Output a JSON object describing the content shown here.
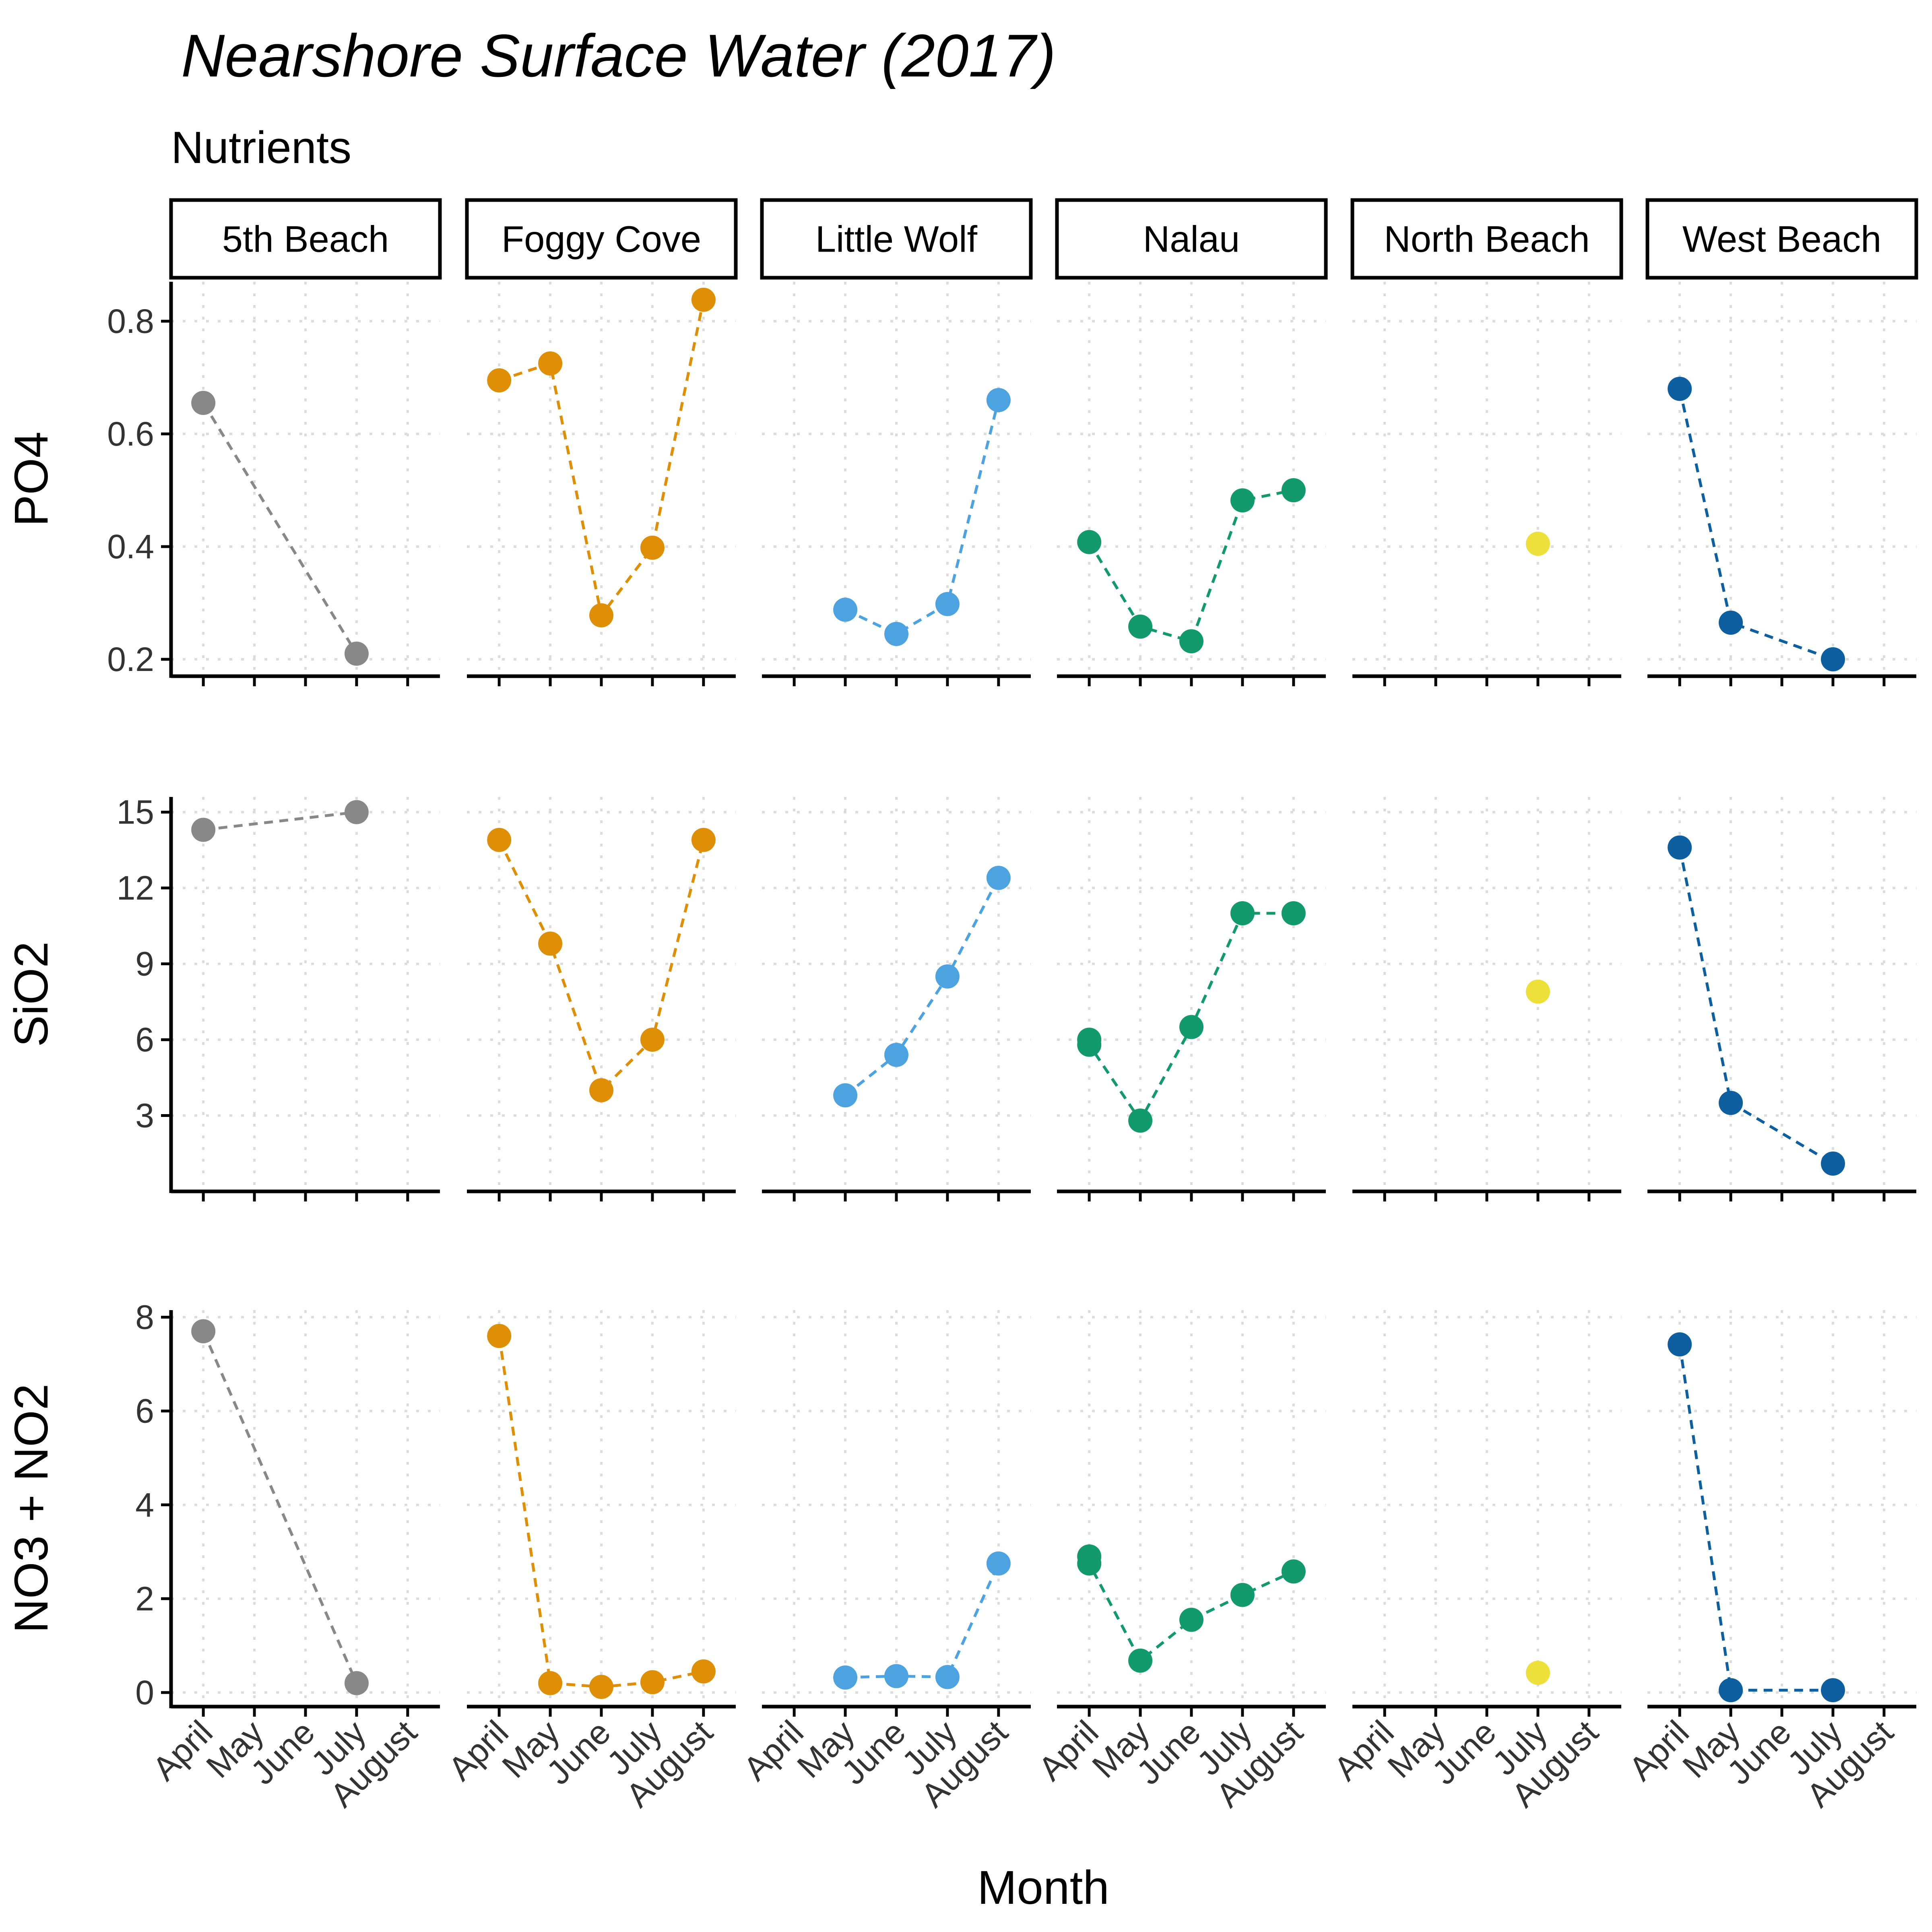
{
  "chart_data": {
    "type": "scatter",
    "title": "Nearshore Surface Water (2017)",
    "subtitle": "Nutrients",
    "xlabel": "Month",
    "months": [
      "April",
      "May",
      "June",
      "July",
      "August"
    ],
    "panels": [
      "5th Beach",
      "Foggy Cove",
      "Little Wolf",
      "Nalau",
      "North Beach",
      "West Beach"
    ],
    "colors": {
      "5th Beach": "#888888",
      "Foggy Cove": "#DE8F05",
      "Little Wolf": "#4DA3E0",
      "Nalau": "#129A6C",
      "North Beach": "#EDE03A",
      "West Beach": "#0D5FA0"
    },
    "line_style": "dashed",
    "grid": "dotted",
    "rows": [
      {
        "variable": "PO4",
        "ylim": [
          0.17,
          0.87
        ],
        "yticks": [
          "0.2",
          "0.4",
          "0.6",
          "0.8"
        ],
        "series": [
          {
            "site": "5th Beach",
            "points": [
              [
                "April",
                0.655
              ],
              [
                "July",
                0.21
              ]
            ]
          },
          {
            "site": "Foggy Cove",
            "points": [
              [
                "April",
                0.695
              ],
              [
                "May",
                0.725
              ],
              [
                "June",
                0.278
              ],
              [
                "July",
                0.398
              ],
              [
                "August",
                0.838
              ]
            ]
          },
          {
            "site": "Little Wolf",
            "points": [
              [
                "May",
                0.288
              ],
              [
                "June",
                0.245
              ],
              [
                "July",
                0.298
              ],
              [
                "August",
                0.66
              ]
            ]
          },
          {
            "site": "Nalau",
            "points": [
              [
                "April",
                0.408
              ],
              [
                "May",
                0.258
              ],
              [
                "June",
                0.232
              ],
              [
                "July",
                0.482
              ],
              [
                "August",
                0.5
              ]
            ]
          },
          {
            "site": "North Beach",
            "points": [
              [
                "July",
                0.405
              ]
            ]
          },
          {
            "site": "West Beach",
            "points": [
              [
                "April",
                0.68
              ],
              [
                "May",
                0.265
              ],
              [
                "July",
                0.2
              ]
            ]
          }
        ]
      },
      {
        "variable": "SiO2",
        "ylim": [
          0.0,
          15.6
        ],
        "yticks": [
          "3",
          "6",
          "9",
          "12",
          "15"
        ],
        "series": [
          {
            "site": "5th Beach",
            "points": [
              [
                "April",
                14.3
              ],
              [
                "July",
                15.0
              ]
            ]
          },
          {
            "site": "Foggy Cove",
            "points": [
              [
                "April",
                13.9
              ],
              [
                "May",
                9.8
              ],
              [
                "June",
                4.0
              ],
              [
                "July",
                6.0
              ],
              [
                "August",
                13.9
              ]
            ]
          },
          {
            "site": "Little Wolf",
            "points": [
              [
                "May",
                3.8
              ],
              [
                "June",
                5.4
              ],
              [
                "July",
                8.5
              ],
              [
                "August",
                12.4
              ]
            ]
          },
          {
            "site": "Nalau",
            "points": [
              [
                "April",
                6.0
              ],
              [
                "April",
                5.8
              ],
              [
                "May",
                2.8
              ],
              [
                "June",
                6.5
              ],
              [
                "July",
                11.0
              ],
              [
                "August",
                11.0
              ]
            ]
          },
          {
            "site": "North Beach",
            "points": [
              [
                "July",
                7.9
              ]
            ]
          },
          {
            "site": "West Beach",
            "points": [
              [
                "April",
                13.6
              ],
              [
                "May",
                3.5
              ],
              [
                "July",
                1.1
              ]
            ]
          }
        ]
      },
      {
        "variable": "NO3 + NO2",
        "ylim": [
          -0.3,
          8.15
        ],
        "yticks": [
          "0",
          "2",
          "4",
          "6",
          "8"
        ],
        "series": [
          {
            "site": "5th Beach",
            "points": [
              [
                "April",
                7.7
              ],
              [
                "July",
                0.2
              ]
            ]
          },
          {
            "site": "Foggy Cove",
            "points": [
              [
                "April",
                7.6
              ],
              [
                "May",
                0.2
              ],
              [
                "June",
                0.12
              ],
              [
                "July",
                0.22
              ],
              [
                "August",
                0.45
              ]
            ]
          },
          {
            "site": "Little Wolf",
            "points": [
              [
                "May",
                0.32
              ],
              [
                "June",
                0.35
              ],
              [
                "July",
                0.33
              ],
              [
                "August",
                2.75
              ]
            ]
          },
          {
            "site": "Nalau",
            "points": [
              [
                "April",
                2.9
              ],
              [
                "April",
                2.75
              ],
              [
                "May",
                0.68
              ],
              [
                "June",
                1.55
              ],
              [
                "July",
                2.08
              ],
              [
                "August",
                2.58
              ]
            ]
          },
          {
            "site": "North Beach",
            "points": [
              [
                "July",
                0.42
              ]
            ]
          },
          {
            "site": "West Beach",
            "points": [
              [
                "April",
                7.42
              ],
              [
                "May",
                0.05
              ],
              [
                "July",
                0.05
              ]
            ]
          }
        ]
      }
    ]
  }
}
